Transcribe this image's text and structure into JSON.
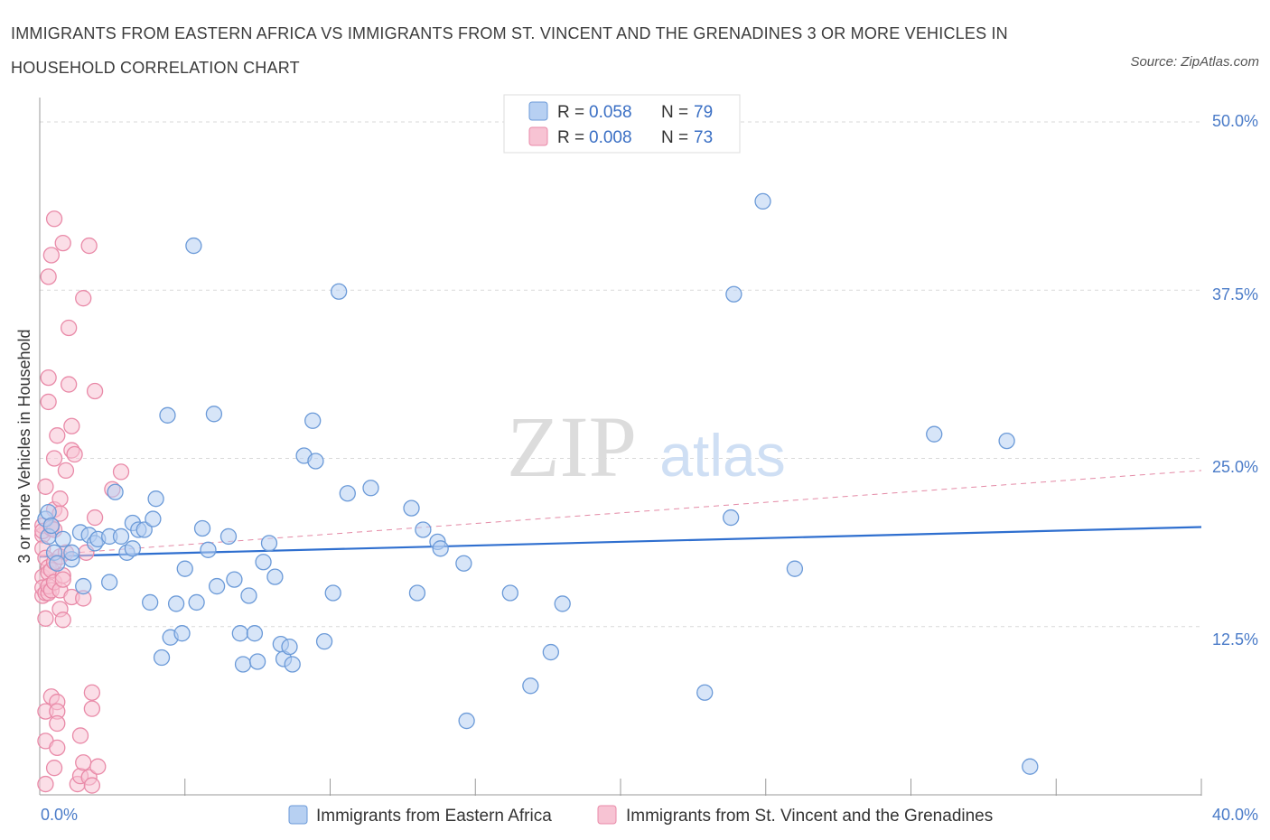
{
  "title": "IMMIGRANTS FROM EASTERN AFRICA VS IMMIGRANTS FROM ST. VINCENT AND THE GRENADINES 3 OR MORE VEHICLES IN HOUSEHOLD CORRELATION CHART",
  "source": "Source: ZipAtlas.com",
  "watermark": {
    "zip": "ZIP",
    "atlas": "atlas"
  },
  "colors": {
    "blue_fill": "#b7d0f2",
    "blue_stroke": "#6b9ad8",
    "blue_line": "#2f6fcf",
    "pink_fill": "#f7c3d3",
    "pink_stroke": "#e98aa8",
    "pink_line": "#e48aa6",
    "grid": "#d9d9d9",
    "tick_text": "#4a7bc8"
  },
  "chart_data": {
    "type": "scatter",
    "xlabel": "",
    "ylabel": "3 or more Vehicles in Household",
    "xlim": [
      0,
      40
    ],
    "ylim": [
      0,
      50
    ],
    "x_tick_labels": [
      "0.0%",
      "40.0%"
    ],
    "y_ticks": [
      12.5,
      25.0,
      37.5,
      50.0
    ],
    "y_tick_labels": [
      "12.5%",
      "25.0%",
      "37.5%",
      "50.0%"
    ],
    "legend": [
      {
        "r_label": "R =",
        "r": "0.058",
        "n_label": "N =",
        "n": "79"
      },
      {
        "r_label": "R =",
        "r": "0.008",
        "n_label": "N =",
        "n": "73"
      }
    ],
    "series": [
      {
        "name": "Immigrants from Eastern Africa",
        "color": "blue",
        "trend": {
          "x0": 0,
          "y0": 17.7,
          "x1": 40,
          "y1": 19.9
        },
        "points": [
          [
            0.2,
            20.5
          ],
          [
            0.3,
            21.0
          ],
          [
            0.3,
            19.2
          ],
          [
            0.4,
            20.0
          ],
          [
            0.5,
            18.0
          ],
          [
            0.6,
            17.2
          ],
          [
            0.8,
            19.0
          ],
          [
            1.1,
            17.5
          ],
          [
            1.1,
            18.0
          ],
          [
            1.4,
            19.5
          ],
          [
            1.5,
            15.5
          ],
          [
            1.7,
            19.3
          ],
          [
            1.9,
            18.7
          ],
          [
            2.0,
            19.0
          ],
          [
            2.4,
            19.2
          ],
          [
            2.4,
            15.8
          ],
          [
            2.6,
            22.5
          ],
          [
            2.8,
            19.2
          ],
          [
            3.0,
            18.0
          ],
          [
            3.2,
            18.3
          ],
          [
            3.2,
            20.2
          ],
          [
            3.4,
            19.7
          ],
          [
            3.6,
            19.7
          ],
          [
            3.8,
            14.3
          ],
          [
            3.9,
            20.5
          ],
          [
            4.0,
            22.0
          ],
          [
            4.2,
            10.2
          ],
          [
            4.4,
            28.2
          ],
          [
            4.5,
            11.7
          ],
          [
            4.7,
            14.2
          ],
          [
            4.9,
            12.0
          ],
          [
            5.0,
            16.8
          ],
          [
            5.3,
            40.8
          ],
          [
            5.4,
            14.3
          ],
          [
            5.6,
            19.8
          ],
          [
            5.8,
            18.2
          ],
          [
            6.0,
            28.3
          ],
          [
            6.1,
            15.5
          ],
          [
            6.5,
            19.2
          ],
          [
            6.7,
            16.0
          ],
          [
            6.9,
            12.0
          ],
          [
            7.0,
            9.7
          ],
          [
            7.2,
            14.8
          ],
          [
            7.4,
            12.0
          ],
          [
            7.5,
            9.9
          ],
          [
            7.7,
            17.3
          ],
          [
            7.9,
            18.7
          ],
          [
            8.1,
            16.2
          ],
          [
            8.3,
            11.2
          ],
          [
            8.4,
            10.1
          ],
          [
            8.6,
            11.0
          ],
          [
            8.7,
            9.7
          ],
          [
            9.1,
            25.2
          ],
          [
            9.4,
            27.8
          ],
          [
            9.5,
            24.8
          ],
          [
            9.8,
            11.4
          ],
          [
            10.1,
            15.0
          ],
          [
            10.3,
            37.4
          ],
          [
            10.6,
            22.4
          ],
          [
            11.4,
            22.8
          ],
          [
            12.8,
            21.3
          ],
          [
            13.0,
            15.0
          ],
          [
            13.2,
            19.7
          ],
          [
            13.7,
            18.8
          ],
          [
            13.8,
            18.3
          ],
          [
            14.6,
            17.2
          ],
          [
            14.7,
            5.5
          ],
          [
            16.2,
            15.0
          ],
          [
            16.9,
            8.1
          ],
          [
            17.6,
            10.6
          ],
          [
            18.0,
            14.2
          ],
          [
            22.9,
            7.6
          ],
          [
            23.8,
            20.6
          ],
          [
            23.9,
            37.2
          ],
          [
            24.9,
            44.1
          ],
          [
            26.0,
            16.8
          ],
          [
            30.8,
            26.8
          ],
          [
            33.3,
            26.3
          ],
          [
            34.1,
            2.1
          ]
        ]
      },
      {
        "name": "Immigrants from St. Vincent and the Grenadines",
        "color": "pink",
        "trend": {
          "x0": 0,
          "y0": 17.8,
          "x1": 40,
          "y1": 24.1
        },
        "points": [
          [
            0.1,
            16.2
          ],
          [
            0.1,
            14.8
          ],
          [
            0.1,
            19.3
          ],
          [
            0.1,
            15.4
          ],
          [
            0.1,
            18.3
          ],
          [
            0.1,
            20.0
          ],
          [
            0.1,
            19.6
          ],
          [
            0.2,
            13.1
          ],
          [
            0.2,
            15.0
          ],
          [
            0.2,
            17.6
          ],
          [
            0.2,
            22.9
          ],
          [
            0.2,
            4.0
          ],
          [
            0.2,
            6.2
          ],
          [
            0.2,
            0.8
          ],
          [
            0.3,
            31.0
          ],
          [
            0.3,
            15.0
          ],
          [
            0.3,
            16.9
          ],
          [
            0.3,
            16.5
          ],
          [
            0.3,
            29.2
          ],
          [
            0.3,
            38.5
          ],
          [
            0.3,
            15.5
          ],
          [
            0.4,
            40.1
          ],
          [
            0.4,
            20.0
          ],
          [
            0.4,
            16.7
          ],
          [
            0.4,
            19.8
          ],
          [
            0.4,
            15.2
          ],
          [
            0.4,
            7.3
          ],
          [
            0.5,
            42.8
          ],
          [
            0.5,
            21.2
          ],
          [
            0.5,
            19.7
          ],
          [
            0.5,
            17.3
          ],
          [
            0.5,
            15.8
          ],
          [
            0.5,
            25.0
          ],
          [
            0.5,
            2.0
          ],
          [
            0.6,
            6.9
          ],
          [
            0.6,
            6.2
          ],
          [
            0.6,
            5.3
          ],
          [
            0.6,
            3.5
          ],
          [
            0.6,
            26.7
          ],
          [
            0.7,
            22.0
          ],
          [
            0.7,
            17.7
          ],
          [
            0.7,
            15.2
          ],
          [
            0.7,
            13.8
          ],
          [
            0.7,
            20.9
          ],
          [
            0.8,
            41.0
          ],
          [
            0.8,
            13.0
          ],
          [
            0.8,
            16.3
          ],
          [
            0.8,
            16.0
          ],
          [
            0.9,
            24.1
          ],
          [
            0.9,
            18.0
          ],
          [
            1.0,
            34.7
          ],
          [
            1.0,
            30.5
          ],
          [
            1.1,
            27.4
          ],
          [
            1.1,
            25.6
          ],
          [
            1.1,
            14.7
          ],
          [
            1.2,
            25.3
          ],
          [
            1.3,
            0.8
          ],
          [
            1.4,
            1.4
          ],
          [
            1.4,
            4.4
          ],
          [
            1.5,
            36.9
          ],
          [
            1.5,
            14.6
          ],
          [
            1.5,
            2.4
          ],
          [
            1.6,
            18.0
          ],
          [
            1.7,
            40.8
          ],
          [
            1.7,
            1.3
          ],
          [
            1.8,
            6.4
          ],
          [
            1.8,
            7.6
          ],
          [
            1.8,
            0.7
          ],
          [
            1.9,
            30.0
          ],
          [
            1.9,
            20.6
          ],
          [
            2.0,
            2.1
          ],
          [
            2.5,
            22.7
          ],
          [
            2.8,
            24.0
          ]
        ]
      }
    ]
  }
}
